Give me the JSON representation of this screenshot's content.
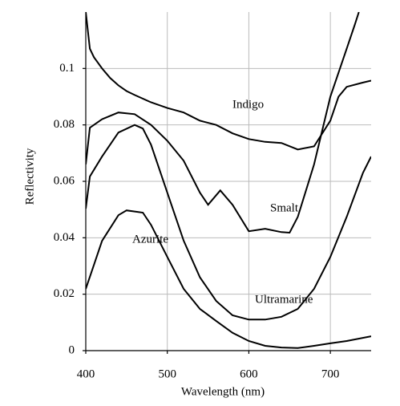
{
  "chart_data": {
    "type": "line",
    "xlabel": "Wavelength (nm)",
    "ylabel": "Reflectivity",
    "xlim": [
      400,
      750
    ],
    "ylim": [
      0,
      0.12
    ],
    "xticks": [
      400,
      500,
      600,
      700
    ],
    "yticks": [
      0,
      0.02,
      0.04,
      0.06,
      0.08,
      0.1
    ],
    "grid": true,
    "series": [
      {
        "name": "Indigo",
        "color": "#000000",
        "x": [
          400,
          405,
          410,
          420,
          430,
          440,
          450,
          460,
          480,
          500,
          520,
          540,
          560,
          580,
          600,
          620,
          640,
          660,
          680,
          700,
          710,
          720,
          740,
          750
        ],
        "values": [
          0.12,
          0.107,
          0.104,
          0.1,
          0.0966,
          0.094,
          0.092,
          0.0906,
          0.088,
          0.086,
          0.0844,
          0.0815,
          0.08,
          0.077,
          0.075,
          0.074,
          0.0736,
          0.0713,
          0.0724,
          0.0815,
          0.09,
          0.0935,
          0.095,
          0.0957
        ]
      },
      {
        "name": "Smalt",
        "color": "#000000",
        "x": [
          400,
          405,
          420,
          440,
          460,
          480,
          500,
          520,
          540,
          550,
          565,
          580,
          600,
          620,
          640,
          650,
          660,
          680,
          700,
          720,
          730,
          735
        ],
        "values": [
          0.066,
          0.079,
          0.082,
          0.0844,
          0.0838,
          0.08,
          0.0744,
          0.0673,
          0.056,
          0.0517,
          0.0568,
          0.0517,
          0.0423,
          0.0432,
          0.042,
          0.0418,
          0.0474,
          0.066,
          0.09,
          0.107,
          0.1156,
          0.12
        ]
      },
      {
        "name": "Ultramarine",
        "color": "#000000",
        "x": [
          400,
          405,
          420,
          440,
          460,
          470,
          480,
          500,
          520,
          540,
          560,
          580,
          600,
          620,
          640,
          660,
          680,
          700,
          720,
          740,
          750
        ],
        "values": [
          0.0503,
          0.0617,
          0.0688,
          0.0773,
          0.08,
          0.0787,
          0.073,
          0.056,
          0.039,
          0.026,
          0.0176,
          0.0125,
          0.011,
          0.011,
          0.012,
          0.0148,
          0.0219,
          0.0332,
          0.0474,
          0.063,
          0.0688
        ]
      },
      {
        "name": "Azurite",
        "color": "#000000",
        "x": [
          400,
          410,
          420,
          440,
          450,
          470,
          480,
          500,
          520,
          540,
          560,
          580,
          600,
          620,
          640,
          660,
          680,
          700,
          720,
          750
        ],
        "values": [
          0.0219,
          0.0304,
          0.0389,
          0.048,
          0.0497,
          0.0489,
          0.0446,
          0.0332,
          0.0219,
          0.0148,
          0.0105,
          0.0063,
          0.0034,
          0.0017,
          0.0011,
          0.0009,
          0.0017,
          0.0026,
          0.0034,
          0.0051
        ]
      }
    ]
  }
}
